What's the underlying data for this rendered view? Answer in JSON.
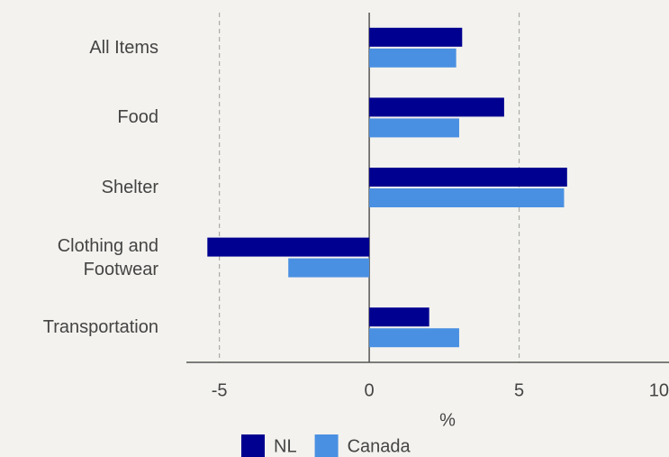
{
  "chart_data": {
    "type": "hbar",
    "categories": [
      "All Items",
      "Food",
      "Shelter",
      "Clothing and Footwear",
      "Transportation"
    ],
    "series": [
      {
        "name": "NL",
        "color": "#000090",
        "values": [
          3.1,
          4.5,
          6.6,
          -5.4,
          2.0
        ]
      },
      {
        "name": "Canada",
        "color": "#4a90e2",
        "values": [
          2.9,
          3.0,
          6.5,
          -2.7,
          3.0
        ]
      }
    ],
    "xlabel": "%",
    "xlim": [
      -6.1,
      10
    ],
    "xticks": [
      -5,
      0,
      5,
      10
    ],
    "grid": true,
    "legend": "bottom"
  }
}
